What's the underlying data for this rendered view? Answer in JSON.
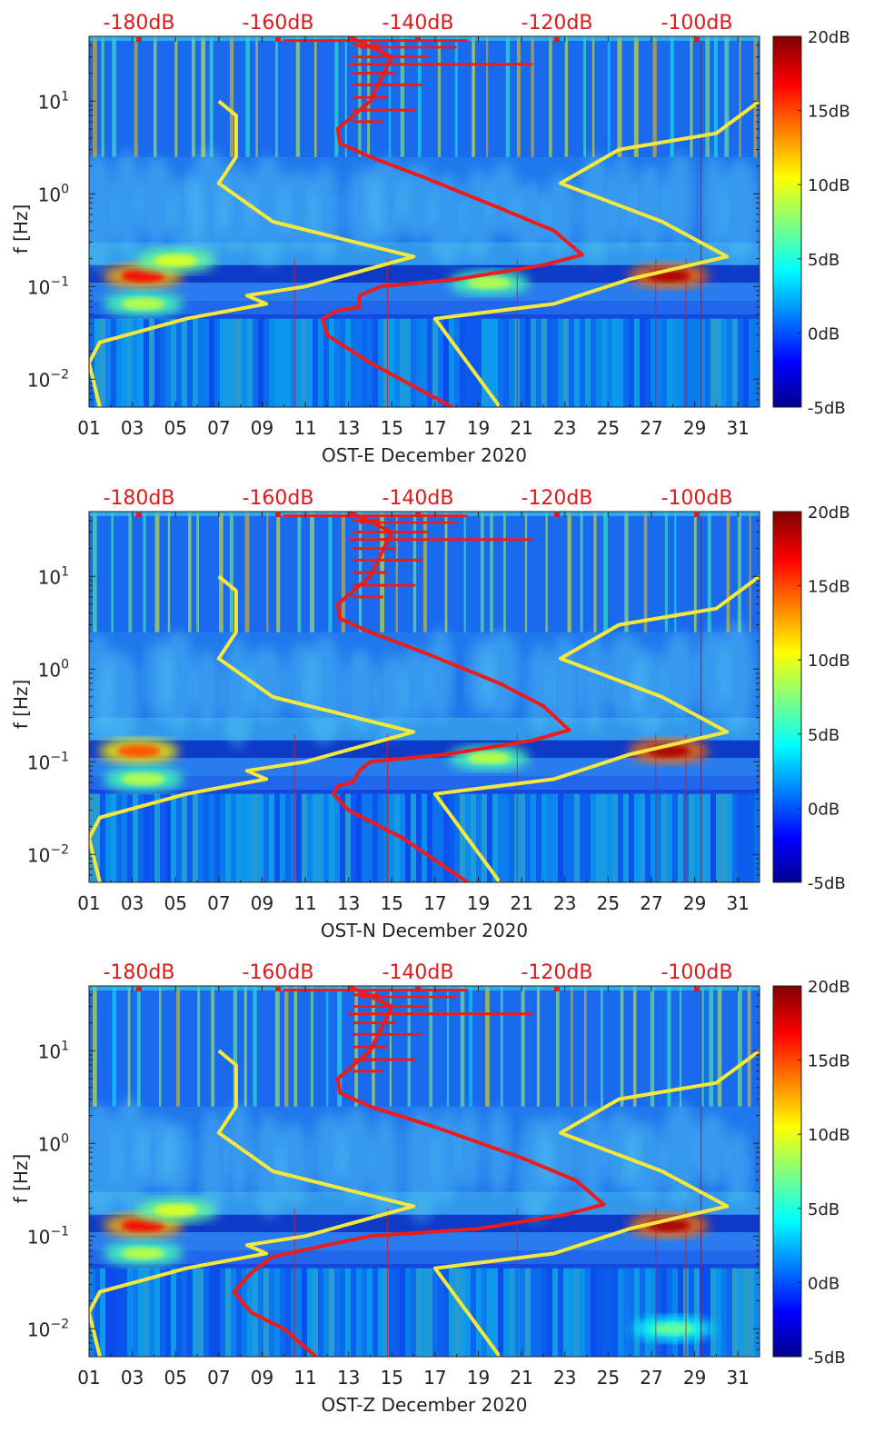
{
  "chart_data": [
    {
      "type": "heatmap",
      "station": "OST-E",
      "xlabel": "OST-E December 2020",
      "ylabel": "f [Hz]",
      "xlim": [
        1,
        32
      ],
      "ylim_hz": [
        0.005,
        50
      ],
      "x_ticks": [
        "01",
        "03",
        "05",
        "07",
        "09",
        "11",
        "13",
        "15",
        "17",
        "19",
        "21",
        "23",
        "25",
        "27",
        "29",
        "31"
      ],
      "y_ticks": [
        "10^-2",
        "10^-1",
        "10^0",
        "10^1"
      ],
      "top_axis_labels": [
        "-180dB",
        "-160dB",
        "-140dB",
        "-120dB",
        "-100dB"
      ],
      "colorbar": {
        "labels": [
          "20dB",
          "15dB",
          "10dB",
          "5dB",
          "0dB",
          "-5dB"
        ],
        "range_db": [
          -5,
          20
        ]
      },
      "hotspots": [
        {
          "day": 3.5,
          "freq_hz": 0.13,
          "level_db": 17
        },
        {
          "day": 27.8,
          "freq_hz": 0.13,
          "level_db": 19
        },
        {
          "day": 5.0,
          "freq_hz": 0.19,
          "level_db": 10
        },
        {
          "day": 3.5,
          "freq_hz": 0.065,
          "level_db": 9
        },
        {
          "day": 19.5,
          "freq_hz": 0.11,
          "level_db": 9
        }
      ],
      "yellow_curve": {
        "name": "noise model bounds",
        "left": [
          [
            7.0,
            10
          ],
          [
            7.8,
            7
          ],
          [
            7.8,
            2.5
          ],
          [
            7.0,
            1.3
          ],
          [
            9.5,
            0.5
          ],
          [
            16.0,
            0.21
          ],
          [
            11.0,
            0.1
          ],
          [
            8.3,
            0.08
          ],
          [
            9.2,
            0.065
          ],
          [
            5.5,
            0.045
          ],
          [
            1.5,
            0.025
          ],
          [
            1.0,
            0.015
          ],
          [
            1.5,
            0.005
          ]
        ],
        "right": [
          [
            32.0,
            10
          ],
          [
            30.0,
            4.5
          ],
          [
            25.5,
            3.0
          ],
          [
            22.8,
            1.3
          ],
          [
            27.5,
            0.5
          ],
          [
            30.5,
            0.21
          ],
          [
            26.0,
            0.12
          ],
          [
            22.5,
            0.065
          ],
          [
            17.0,
            0.045
          ],
          [
            20.0,
            0.005
          ]
        ]
      },
      "red_curve": {
        "name": "median PSD",
        "points": [
          [
            13.0,
            50
          ],
          [
            15.0,
            30
          ],
          [
            14.0,
            10
          ],
          [
            12.5,
            5
          ],
          [
            12.6,
            3.5
          ],
          [
            14.0,
            2.5
          ],
          [
            16.5,
            1.5
          ],
          [
            20.0,
            0.7
          ],
          [
            22.5,
            0.4
          ],
          [
            23.8,
            0.22
          ],
          [
            22.0,
            0.17
          ],
          [
            18.0,
            0.12
          ],
          [
            14.5,
            0.1
          ],
          [
            13.5,
            0.08
          ],
          [
            13.5,
            0.06
          ],
          [
            12.5,
            0.055
          ],
          [
            11.8,
            0.045
          ],
          [
            12.0,
            0.03
          ],
          [
            14.0,
            0.015
          ],
          [
            17.8,
            0.005
          ]
        ]
      }
    },
    {
      "type": "heatmap",
      "station": "OST-N",
      "xlabel": "OST-N December 2020",
      "ylabel": "f [Hz]",
      "xlim": [
        1,
        32
      ],
      "ylim_hz": [
        0.005,
        50
      ],
      "x_ticks": [
        "01",
        "03",
        "05",
        "07",
        "09",
        "11",
        "13",
        "15",
        "17",
        "19",
        "21",
        "23",
        "25",
        "27",
        "29",
        "31"
      ],
      "y_ticks": [
        "10^-2",
        "10^-1",
        "10^0",
        "10^1"
      ],
      "top_axis_labels": [
        "-180dB",
        "-160dB",
        "-140dB",
        "-120dB",
        "-100dB"
      ],
      "colorbar": {
        "labels": [
          "20dB",
          "15dB",
          "10dB",
          "5dB",
          "0dB",
          "-5dB"
        ],
        "range_db": [
          -5,
          20
        ]
      },
      "hotspots": [
        {
          "day": 3.3,
          "freq_hz": 0.13,
          "level_db": 15
        },
        {
          "day": 27.8,
          "freq_hz": 0.13,
          "level_db": 19
        },
        {
          "day": 19.5,
          "freq_hz": 0.11,
          "level_db": 9
        },
        {
          "day": 3.5,
          "freq_hz": 0.065,
          "level_db": 9
        }
      ],
      "yellow_curve": {
        "name": "noise model bounds",
        "left": [
          [
            7.0,
            10
          ],
          [
            7.8,
            7
          ],
          [
            7.8,
            2.5
          ],
          [
            7.0,
            1.3
          ],
          [
            9.5,
            0.5
          ],
          [
            16.0,
            0.21
          ],
          [
            11.0,
            0.1
          ],
          [
            8.3,
            0.08
          ],
          [
            9.2,
            0.065
          ],
          [
            5.5,
            0.045
          ],
          [
            1.5,
            0.025
          ],
          [
            1.0,
            0.015
          ],
          [
            1.5,
            0.005
          ]
        ],
        "right": [
          [
            32.0,
            10
          ],
          [
            30.0,
            4.5
          ],
          [
            25.5,
            3.0
          ],
          [
            22.8,
            1.3
          ],
          [
            27.5,
            0.5
          ],
          [
            30.5,
            0.21
          ],
          [
            26.0,
            0.12
          ],
          [
            22.5,
            0.065
          ],
          [
            17.0,
            0.045
          ],
          [
            20.0,
            0.005
          ]
        ]
      },
      "red_curve": {
        "name": "median PSD",
        "points": [
          [
            13.0,
            50
          ],
          [
            15.0,
            30
          ],
          [
            14.0,
            10
          ],
          [
            12.5,
            5
          ],
          [
            12.6,
            3.5
          ],
          [
            14.0,
            2.5
          ],
          [
            16.5,
            1.5
          ],
          [
            20.0,
            0.7
          ],
          [
            22.0,
            0.4
          ],
          [
            23.2,
            0.22
          ],
          [
            21.5,
            0.17
          ],
          [
            17.5,
            0.12
          ],
          [
            14.0,
            0.1
          ],
          [
            13.5,
            0.08
          ],
          [
            13.2,
            0.06
          ],
          [
            12.5,
            0.055
          ],
          [
            12.3,
            0.045
          ],
          [
            13.0,
            0.03
          ],
          [
            15.5,
            0.015
          ],
          [
            18.5,
            0.005
          ]
        ]
      }
    },
    {
      "type": "heatmap",
      "station": "OST-Z",
      "xlabel": "OST-Z December 2020",
      "ylabel": "f [Hz]",
      "xlim": [
        1,
        32
      ],
      "ylim_hz": [
        0.005,
        50
      ],
      "x_ticks": [
        "01",
        "03",
        "05",
        "07",
        "09",
        "11",
        "13",
        "15",
        "17",
        "19",
        "21",
        "23",
        "25",
        "27",
        "29",
        "31"
      ],
      "y_ticks": [
        "10^-2",
        "10^-1",
        "10^0",
        "10^1"
      ],
      "top_axis_labels": [
        "-180dB",
        "-160dB",
        "-140dB",
        "-120dB",
        "-100dB"
      ],
      "colorbar": {
        "labels": [
          "20dB",
          "15dB",
          "10dB",
          "5dB",
          "0dB",
          "-5dB"
        ],
        "range_db": [
          -5,
          20
        ]
      },
      "hotspots": [
        {
          "day": 3.5,
          "freq_hz": 0.13,
          "level_db": 17
        },
        {
          "day": 5.0,
          "freq_hz": 0.19,
          "level_db": 10
        },
        {
          "day": 27.8,
          "freq_hz": 0.13,
          "level_db": 19
        },
        {
          "day": 3.5,
          "freq_hz": 0.065,
          "level_db": 9
        },
        {
          "day": 28.0,
          "freq_hz": 0.01,
          "level_db": 7
        }
      ],
      "yellow_curve": {
        "name": "noise model bounds",
        "left": [
          [
            7.0,
            10
          ],
          [
            7.8,
            7
          ],
          [
            7.8,
            2.5
          ],
          [
            7.0,
            1.3
          ],
          [
            9.5,
            0.5
          ],
          [
            16.0,
            0.21
          ],
          [
            11.0,
            0.1
          ],
          [
            8.3,
            0.08
          ],
          [
            9.2,
            0.065
          ],
          [
            5.5,
            0.045
          ],
          [
            1.5,
            0.025
          ],
          [
            1.0,
            0.015
          ],
          [
            1.5,
            0.005
          ]
        ],
        "right": [
          [
            32.0,
            10
          ],
          [
            30.0,
            4.5
          ],
          [
            25.5,
            3.0
          ],
          [
            22.8,
            1.3
          ],
          [
            27.5,
            0.5
          ],
          [
            30.5,
            0.21
          ],
          [
            26.0,
            0.12
          ],
          [
            22.5,
            0.065
          ],
          [
            17.0,
            0.045
          ],
          [
            20.0,
            0.005
          ]
        ]
      },
      "red_curve": {
        "name": "median PSD",
        "points": [
          [
            13.0,
            50
          ],
          [
            15.0,
            30
          ],
          [
            14.0,
            10
          ],
          [
            12.5,
            5
          ],
          [
            12.6,
            3.5
          ],
          [
            14.0,
            2.5
          ],
          [
            17.0,
            1.5
          ],
          [
            21.0,
            0.7
          ],
          [
            23.5,
            0.4
          ],
          [
            24.8,
            0.22
          ],
          [
            23.0,
            0.17
          ],
          [
            19.0,
            0.12
          ],
          [
            14.0,
            0.1
          ],
          [
            12.0,
            0.08
          ],
          [
            9.5,
            0.06
          ],
          [
            8.5,
            0.04
          ],
          [
            7.7,
            0.025
          ],
          [
            8.5,
            0.015
          ],
          [
            10.0,
            0.01
          ],
          [
            11.5,
            0.005
          ]
        ]
      }
    }
  ]
}
